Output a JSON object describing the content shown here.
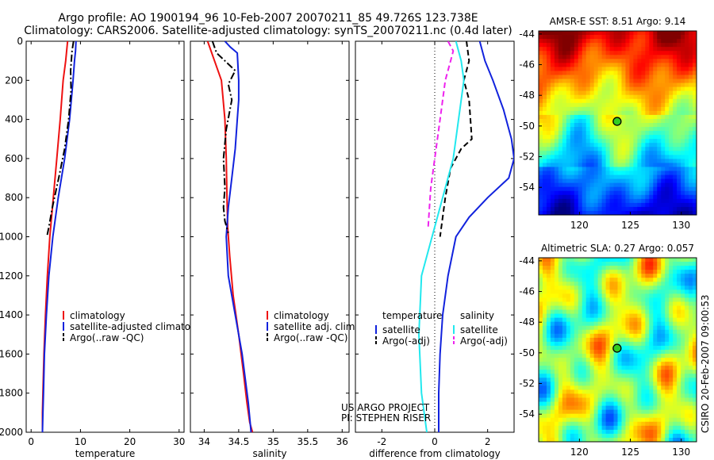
{
  "header": {
    "line1": "Argo profile: AO 1900194_96 10-Feb-2007 20070211_85 49.726S 123.738E",
    "line2": "Climatology: CARS2006. Satellite-adjusted climatology: synTS_20070211.nc (0.4d later)"
  },
  "side_text": "CSIRO 20-Feb-2007 09:00:53",
  "project_credit": [
    "US ARGO PROJECT",
    "PI: STEPHEN RISER"
  ],
  "colors": {
    "red": "#ee1111",
    "blue": "#1122dd",
    "black": "#000000",
    "cyan": "#22e8ee",
    "magenta": "#ee22ee"
  },
  "chart_data": [
    {
      "type": "line",
      "xlabel": "temperature",
      "xlim": [
        -1,
        31
      ],
      "ylim": [
        2000,
        0
      ],
      "xticks": [
        0,
        10,
        20,
        30
      ],
      "yticks": [
        0,
        200,
        400,
        600,
        800,
        1000,
        1200,
        1400,
        1600,
        1800,
        2000
      ],
      "legend": [
        "climatology",
        "satellite-adjusted climatology",
        "Argo(..raw -QC)"
      ],
      "series": [
        {
          "name": "climatology",
          "color": "red",
          "style": "solid",
          "x": [
            7.4,
            7.0,
            6.5,
            5.9,
            5.2,
            4.5,
            3.8,
            3.3,
            2.9,
            2.6,
            2.4,
            2.3,
            2.3
          ],
          "y": [
            0,
            100,
            200,
            400,
            600,
            800,
            1000,
            1200,
            1400,
            1600,
            1800,
            1900,
            2000
          ]
        },
        {
          "name": "satellite-adjusted climatology",
          "color": "blue",
          "style": "solid",
          "x": [
            9.1,
            9.0,
            8.8,
            8.5,
            7.8,
            6.8,
            5.5,
            4.4,
            3.6,
            3.1,
            2.7,
            2.5,
            2.4,
            2.3
          ],
          "y": [
            0,
            50,
            100,
            200,
            400,
            600,
            800,
            1000,
            1200,
            1400,
            1600,
            1800,
            1900,
            2000
          ]
        },
        {
          "name": "Argo(..raw -QC)",
          "color": "black",
          "style": "dashdot",
          "x": [
            8.6,
            8.3,
            8.0,
            8.1,
            7.6,
            6.8,
            5.6,
            4.3,
            3.6,
            3.2
          ],
          "y": [
            0,
            50,
            150,
            250,
            400,
            550,
            700,
            850,
            950,
            1000
          ]
        }
      ]
    },
    {
      "type": "line",
      "xlabel": "salinity",
      "xlim": [
        33.8,
        36.1
      ],
      "ylim": [
        2000,
        0
      ],
      "xticks": [
        34,
        34.5,
        35,
        35.5,
        36
      ],
      "yticks": [
        0,
        200,
        400,
        600,
        800,
        1000,
        1200,
        1400,
        1600,
        1800,
        2000
      ],
      "legend": [
        "climatology",
        "satellite adj. clim.",
        "Argo(..raw -QC)"
      ],
      "series": [
        {
          "name": "climatology",
          "color": "red",
          "style": "solid",
          "x": [
            34.05,
            34.15,
            34.25,
            34.3,
            34.32,
            34.33,
            34.34,
            34.37,
            34.42,
            34.5,
            34.57,
            34.62,
            34.66,
            34.7
          ],
          "y": [
            0,
            100,
            200,
            400,
            600,
            800,
            950,
            1100,
            1300,
            1500,
            1700,
            1850,
            1950,
            2000
          ]
        },
        {
          "name": "satellite adj. clim.",
          "color": "blue",
          "style": "solid",
          "x": [
            34.3,
            34.38,
            34.48,
            34.5,
            34.5,
            34.48,
            34.45,
            34.4,
            34.35,
            34.32,
            34.35,
            34.45,
            34.55,
            34.64,
            34.68
          ],
          "y": [
            0,
            30,
            60,
            200,
            300,
            400,
            550,
            700,
            850,
            1000,
            1200,
            1400,
            1600,
            1850,
            2000
          ]
        },
        {
          "name": "Argo(..raw -QC)",
          "color": "black",
          "style": "dashdot",
          "x": [
            34.12,
            34.18,
            34.3,
            34.45,
            34.35,
            34.4,
            34.32,
            34.28,
            34.3,
            34.28,
            34.3,
            34.35
          ],
          "y": [
            0,
            60,
            100,
            150,
            220,
            300,
            450,
            600,
            750,
            850,
            920,
            980
          ]
        }
      ]
    },
    {
      "type": "line",
      "xlabel": "difference from climatology",
      "xlim": [
        -3,
        3.0
      ],
      "ylim": [
        2000,
        0
      ],
      "xticks": [
        -2,
        0,
        2
      ],
      "yticks": [
        0,
        200,
        400,
        600,
        800,
        1000,
        1200,
        1400,
        1600,
        1800,
        2000
      ],
      "legend_groups": [
        {
          "title": "temperature",
          "entries": [
            "satellite",
            "Argo(-adj)"
          ]
        },
        {
          "title": "salinity",
          "entries": [
            "satellite",
            "Argo(-adj)"
          ]
        }
      ],
      "series": [
        {
          "name": "temperature satellite",
          "color": "blue",
          "style": "solid",
          "x": [
            1.7,
            1.9,
            2.2,
            2.6,
            2.9,
            3.0,
            2.8,
            2.0,
            1.3,
            0.8,
            0.5,
            0.3,
            0.2,
            0.15,
            0.15
          ],
          "y": [
            0,
            100,
            200,
            350,
            500,
            600,
            700,
            800,
            900,
            1000,
            1200,
            1400,
            1600,
            1800,
            2000
          ]
        },
        {
          "name": "temperature Argo(-adj)",
          "color": "black",
          "style": "dashed",
          "x": [
            1.2,
            1.3,
            1.1,
            1.3,
            1.4,
            1.0,
            0.6,
            0.4,
            0.3,
            0.2
          ],
          "y": [
            0,
            100,
            200,
            300,
            500,
            550,
            650,
            800,
            900,
            1000
          ]
        },
        {
          "name": "salinity satellite",
          "color": "cyan",
          "style": "solid",
          "x": [
            0.8,
            1.0,
            1.1,
            0.9,
            0.7,
            0.4,
            0.1,
            -0.2,
            -0.5,
            -0.6,
            -0.5,
            -0.3
          ],
          "y": [
            0,
            100,
            200,
            400,
            600,
            750,
            900,
            1050,
            1200,
            1500,
            1800,
            2000
          ]
        },
        {
          "name": "salinity Argo(-adj)",
          "color": "magenta",
          "style": "dashed",
          "x": [
            0.5,
            0.7,
            0.6,
            0.4,
            0.2,
            0.0,
            -0.15,
            -0.2,
            -0.25
          ],
          "y": [
            0,
            50,
            100,
            200,
            400,
            600,
            750,
            850,
            950
          ]
        }
      ]
    },
    {
      "type": "heatmap",
      "title": "AMSR-E SST: 8.51 Argo: 9.14",
      "xlim": [
        116,
        131.5
      ],
      "ylim": [
        -55.8,
        -43.8
      ],
      "xticks": [
        120,
        125,
        130
      ],
      "yticks": [
        -44,
        -46,
        -48,
        -50,
        -52,
        -54
      ],
      "marker": {
        "x": 123.7,
        "y": -49.7
      }
    },
    {
      "type": "heatmap",
      "title": "Altimetric SLA: 0.27 Argo: 0.057",
      "xlim": [
        116,
        131.5
      ],
      "ylim": [
        -55.8,
        -43.8
      ],
      "xticks": [
        120,
        125,
        130
      ],
      "yticks": [
        -44,
        -46,
        -48,
        -50,
        -52,
        -54
      ],
      "marker": {
        "x": 123.7,
        "y": -49.7
      }
    }
  ]
}
